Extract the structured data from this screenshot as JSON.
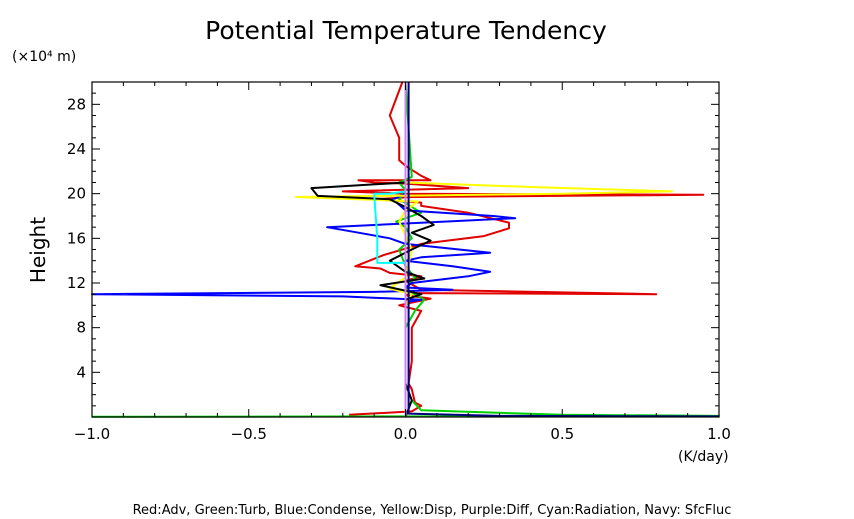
{
  "chart_data": {
    "type": "line",
    "title": "Potential Temperature Tendency",
    "xlabel": "",
    "ylabel": "Height",
    "y_unit": "(×10⁴ m)",
    "x_unit": "(K/day)",
    "caption": "Red:Adv, Green:Turb, Blue:Condense, Yellow:Disp, Purple:Diff, Cyan:Radiation, Navy: SfcFluc",
    "xlim": [
      -1.0,
      1.0
    ],
    "ylim": [
      0,
      30
    ],
    "x_ticks": [
      -1.0,
      -0.5,
      0.0,
      0.5,
      1.0
    ],
    "x_tick_labels": [
      "−1.0",
      "−0.5",
      "0.0",
      "0.5",
      "1.0"
    ],
    "y_ticks": [
      4,
      8,
      12,
      16,
      20,
      24,
      28
    ],
    "y_tick_labels": [
      "4",
      "8",
      "12",
      "16",
      "20",
      "24",
      "28"
    ],
    "grid": false,
    "series": [
      {
        "key": "red",
        "color": "#e00000",
        "x": [
          -0.18,
          0.02,
          0.05,
          0.03,
          0.02,
          0.01,
          0.02,
          0.02,
          0.05,
          -0.02,
          0.08,
          0.0,
          0.03,
          0.8,
          0.05,
          0.0,
          0.05,
          -0.05,
          -0.08,
          -0.16,
          -0.07,
          0.05,
          0.25,
          0.33,
          0.33,
          0.2,
          0.05,
          0.05,
          -0.1,
          0.02,
          0.95,
          0.0,
          -0.2,
          0.2,
          0.0,
          -0.1,
          -0.15,
          0.08,
          0.05,
          0.0,
          -0.02,
          -0.02,
          -0.05,
          -0.01
        ],
        "y": [
          0.2,
          0.5,
          1.0,
          1.3,
          2.5,
          3.0,
          5.0,
          8.0,
          9.5,
          10.0,
          10.6,
          10.9,
          11.1,
          11.0,
          11.4,
          12.2,
          12.6,
          12.9,
          13.3,
          13.5,
          14.5,
          15.5,
          16.2,
          16.9,
          17.4,
          18.3,
          18.9,
          19.2,
          19.5,
          19.7,
          19.9,
          20.0,
          20.2,
          20.5,
          20.9,
          21.0,
          21.2,
          21.2,
          21.6,
          22.5,
          23.0,
          25.0,
          27.0,
          30.0
        ]
      },
      {
        "key": "green",
        "color": "#00d000",
        "x": [
          -1.0,
          1.0,
          0.5,
          0.05,
          0.02,
          0.0,
          0.0,
          0.03,
          0.06,
          0.03,
          0.0,
          0.03,
          0.0,
          -0.02,
          0.02,
          0.0,
          -0.03,
          0.05,
          -0.02,
          0.0,
          -0.02,
          0.02,
          0.0
        ],
        "y": [
          0.02,
          0.1,
          0.2,
          0.6,
          1.5,
          3.0,
          8.0,
          9.5,
          10.5,
          11.0,
          11.5,
          12.5,
          13.5,
          15.0,
          16.0,
          17.0,
          17.5,
          18.3,
          19.5,
          20.3,
          21.0,
          21.5,
          30.0
        ]
      },
      {
        "key": "blue",
        "color": "#0000ff",
        "x": [
          0.0,
          0.0,
          0.0,
          0.0,
          0.05,
          -0.2,
          -1.0,
          -0.1,
          0.15,
          0.0,
          0.02,
          0.2,
          0.27,
          0.15,
          0.0,
          0.05,
          0.27,
          0.0,
          -0.05,
          -0.15,
          -0.25,
          0.05,
          0.35,
          0.28,
          0.0,
          -0.04,
          0.0,
          0.0,
          0.0,
          0.0
        ],
        "y": [
          0.0,
          5.0,
          10.0,
          10.3,
          10.5,
          10.8,
          11.0,
          11.2,
          11.4,
          11.6,
          12.0,
          12.6,
          13.0,
          13.5,
          14.0,
          14.3,
          14.7,
          15.5,
          16.0,
          16.5,
          17.0,
          17.4,
          17.8,
          18.0,
          18.5,
          19.5,
          20.0,
          21.0,
          25.0,
          30.0
        ]
      },
      {
        "key": "yellow",
        "color": "#ffff00",
        "x": [
          0.0,
          0.0,
          0.02,
          -0.05,
          0.0,
          0.02,
          -0.02,
          0.0,
          0.04,
          -0.35,
          0.5,
          0.85,
          0.4,
          0.0,
          0.0
        ],
        "y": [
          0.0,
          10.0,
          11.0,
          11.5,
          12.5,
          15.0,
          17.5,
          18.5,
          19.3,
          19.7,
          20.0,
          20.2,
          20.6,
          21.0,
          30.0
        ]
      },
      {
        "key": "black",
        "color": "#000000",
        "x": [
          0.0,
          0.02,
          0.0,
          0.0,
          0.0,
          0.05,
          -0.08,
          0.06,
          0.0,
          -0.05,
          0.02,
          0.08,
          0.02,
          0.09,
          0.05,
          0.0,
          -0.05,
          -0.28,
          -0.3,
          0.0,
          0.0,
          0.0
        ],
        "y": [
          0.0,
          1.5,
          3.0,
          8.0,
          10.5,
          11.0,
          11.8,
          12.4,
          13.0,
          14.0,
          15.0,
          15.8,
          16.5,
          17.2,
          18.0,
          18.8,
          19.5,
          19.8,
          20.5,
          21.0,
          25.0,
          30.0
        ]
      },
      {
        "key": "cyan",
        "color": "#00ffff",
        "x": [
          0.0,
          0.0,
          -0.09,
          -0.09,
          -0.1,
          -0.1,
          -0.05,
          0.0,
          0.0
        ],
        "y": [
          0.0,
          13.8,
          13.8,
          16.0,
          19.9,
          20.0,
          20.0,
          20.2,
          30.0
        ]
      },
      {
        "key": "navy",
        "color": "#000080",
        "x": [
          1.0,
          0.3,
          0.01,
          0.01,
          0.01
        ],
        "y": [
          0.05,
          0.1,
          0.3,
          15.0,
          30.0
        ]
      },
      {
        "key": "purple",
        "color": "#d080ff",
        "x": [
          0.0,
          0.0,
          0.0
        ],
        "y": [
          0.0,
          15.0,
          30.0
        ]
      }
    ]
  }
}
